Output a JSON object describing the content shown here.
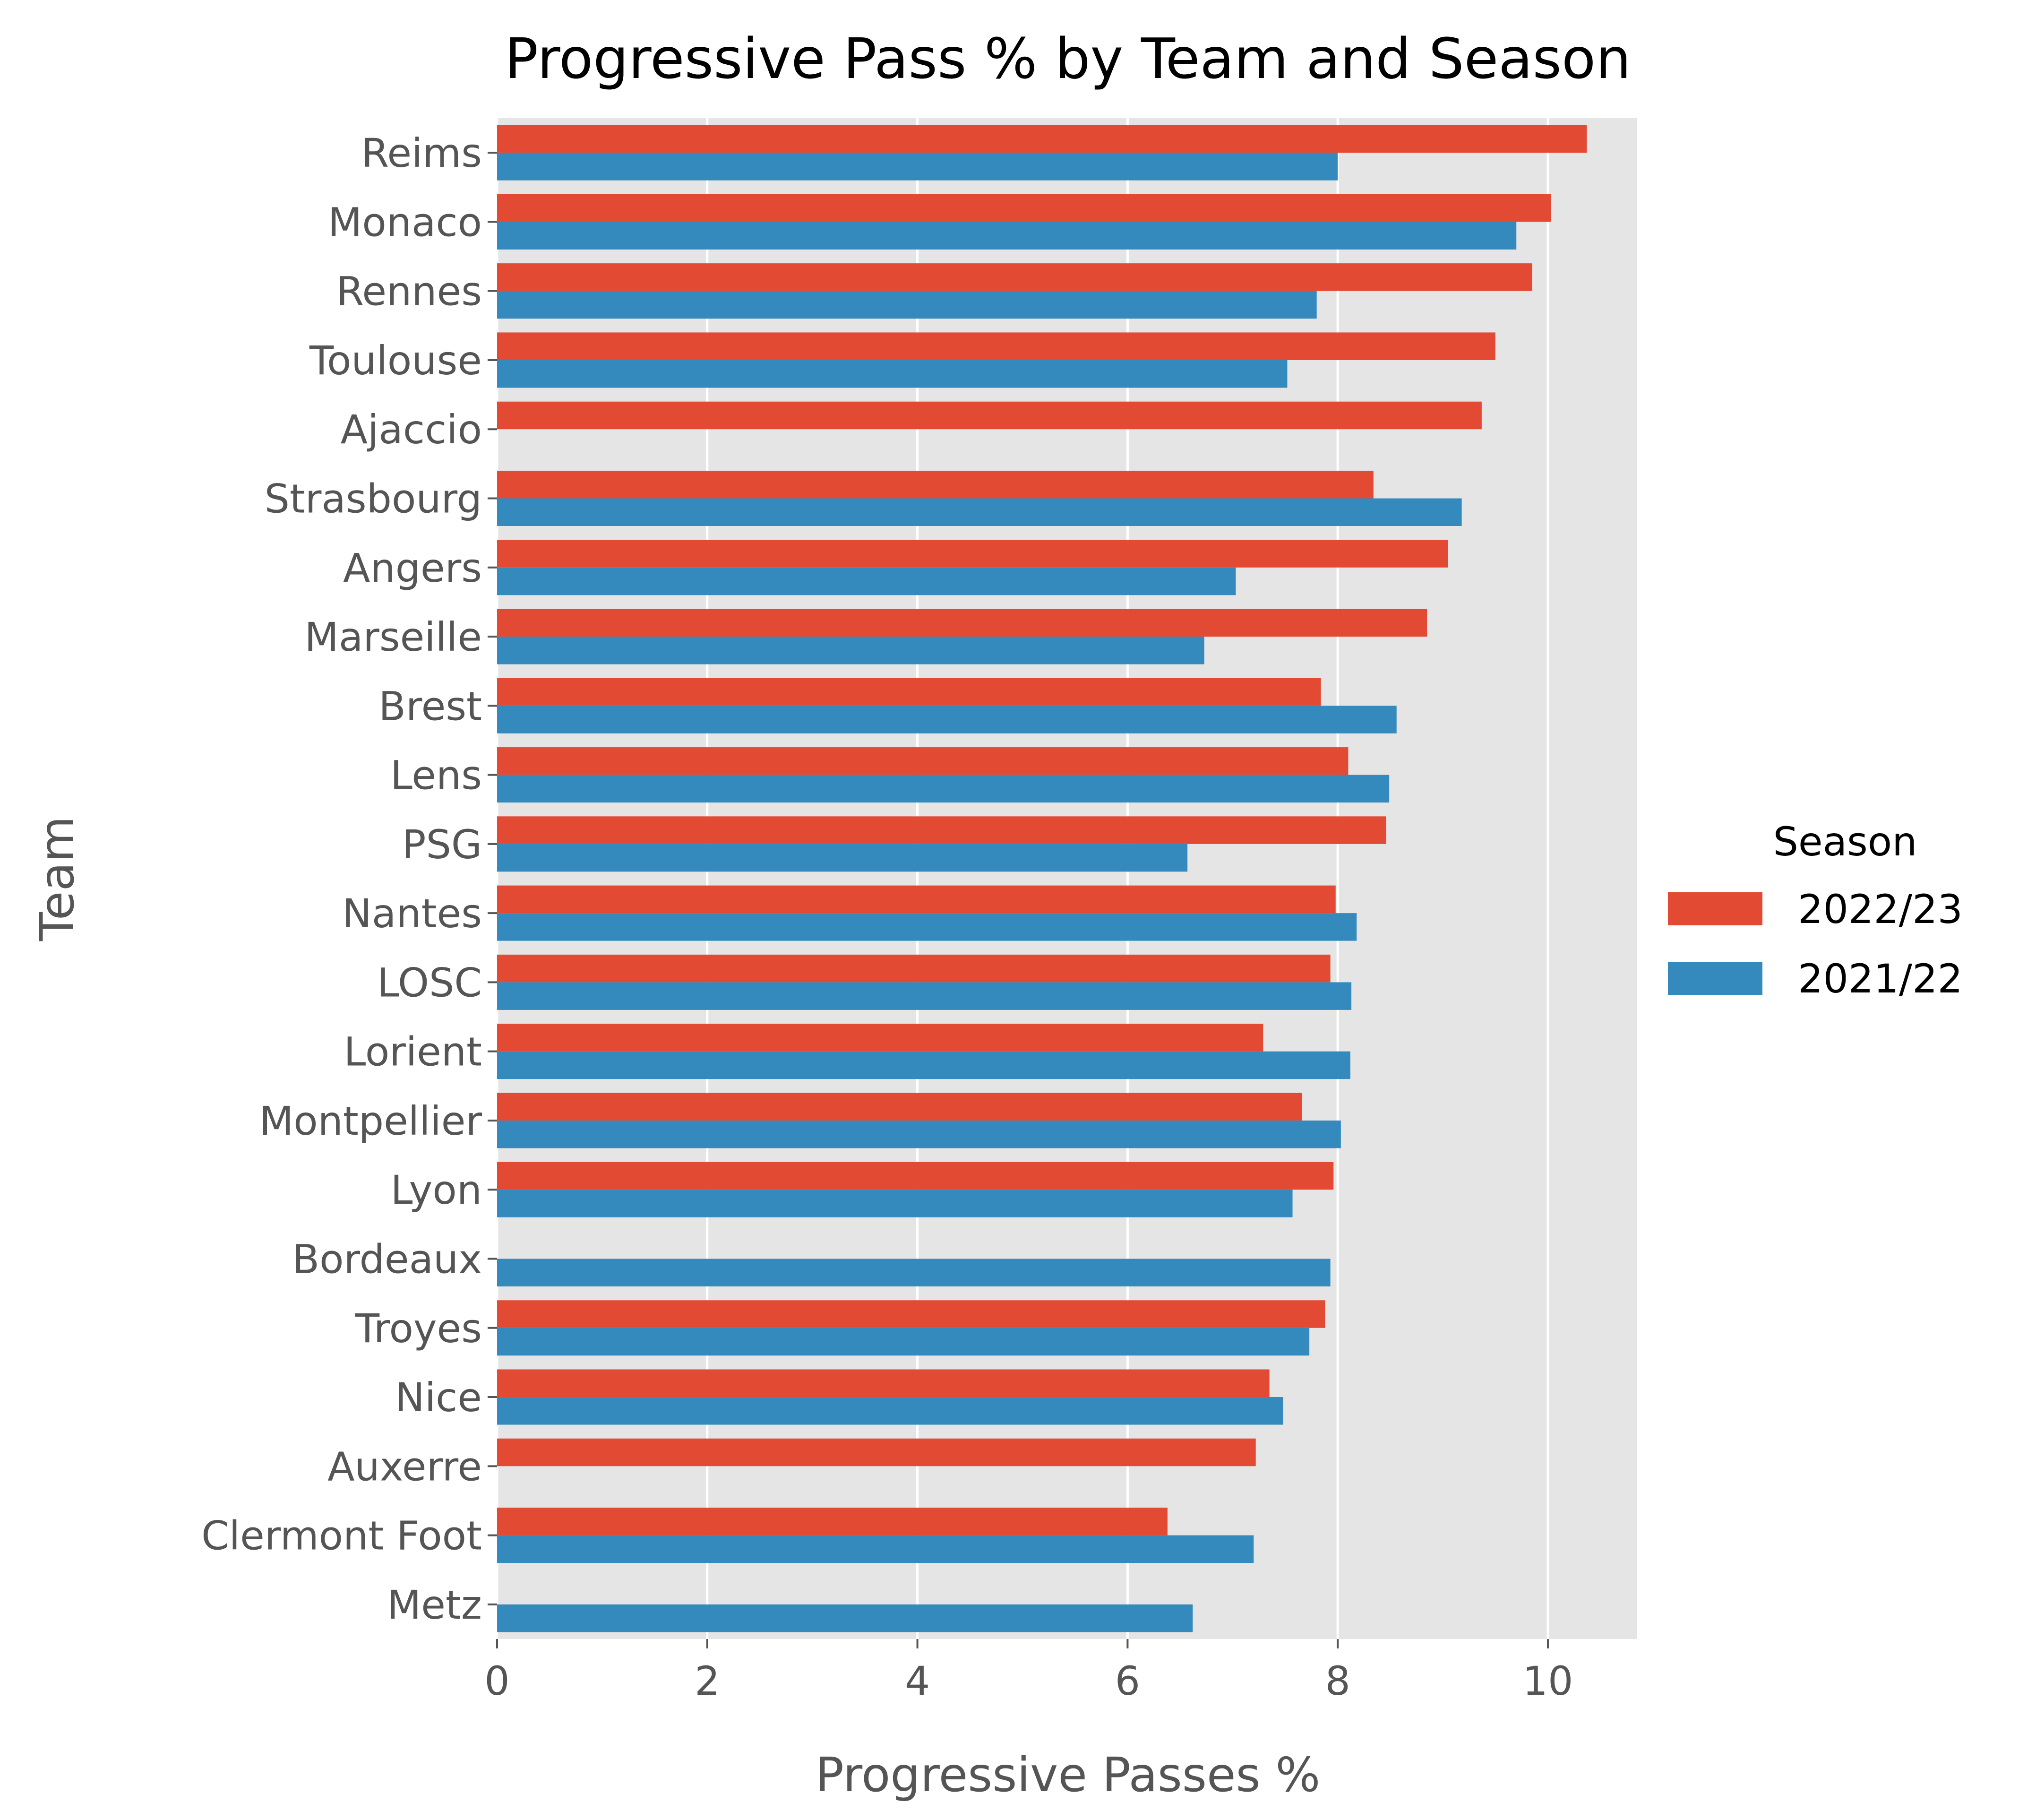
{
  "chart_data": {
    "type": "bar",
    "orientation": "horizontal",
    "title": "Progressive Pass % by Team and Season",
    "xlabel": "Progressive Passes %",
    "ylabel": "Team",
    "xlim": [
      0,
      10.85
    ],
    "xticks": [
      0,
      2,
      4,
      6,
      8,
      10
    ],
    "grid": true,
    "legend_position": "right",
    "legend_title": "Season",
    "categories": [
      "Reims",
      "Monaco",
      "Rennes",
      "Toulouse",
      "Ajaccio",
      "Strasbourg",
      "Angers",
      "Marseille",
      "Brest",
      "Lens",
      "PSG",
      "Nantes",
      "LOSC",
      "Lorient",
      "Montpellier",
      "Lyon",
      "Bordeaux",
      "Troyes",
      "Nice",
      "Auxerre",
      "Clermont Foot",
      "Metz"
    ],
    "series": [
      {
        "name": "2022/23",
        "color": "#E24A33",
        "values": [
          10.37,
          10.03,
          9.85,
          9.5,
          9.37,
          8.34,
          9.05,
          8.85,
          7.84,
          8.1,
          8.46,
          7.98,
          7.93,
          7.29,
          7.66,
          7.96,
          null,
          7.88,
          7.35,
          7.22,
          6.38,
          null
        ]
      },
      {
        "name": "2021/22",
        "color": "#348ABD",
        "values": [
          8.0,
          9.7,
          7.8,
          7.52,
          null,
          9.18,
          7.03,
          6.73,
          8.56,
          8.49,
          6.57,
          8.18,
          8.13,
          8.12,
          8.03,
          7.57,
          7.93,
          7.73,
          7.48,
          null,
          7.2,
          6.62
        ]
      }
    ]
  }
}
